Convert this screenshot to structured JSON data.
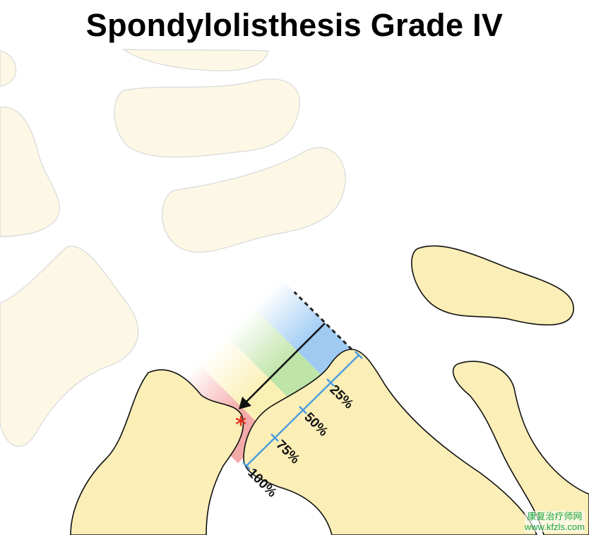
{
  "title": "Spondylolisthesis Grade IV",
  "measure_labels": [
    "25%",
    "50%",
    "75%",
    "100%"
  ],
  "grade_fraction_slipped": 0.75,
  "colors": {
    "bone": "#fbeeb7",
    "faded_bone": "#fdf8e6",
    "blue": "#9fcbf3",
    "green": "#bfe4a8",
    "yellow": "#fbf0b4",
    "red": "#f4aaa8",
    "measure_line": "#4a9be0",
    "asterisk": "#e03020"
  },
  "watermark": {
    "line1": "康复治疗师网",
    "line2": "www.kfzls.com"
  }
}
